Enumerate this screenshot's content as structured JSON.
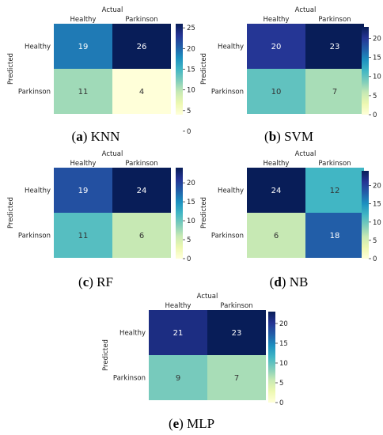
{
  "chart_data": [
    {
      "type": "heatmap",
      "caption_letter": "a",
      "caption_name": "KNN",
      "xlabel": "Actual",
      "ylabel": "Predicted",
      "columns": [
        "Healthy",
        "Parkinson"
      ],
      "rows": [
        "Healthy",
        "Parkinson"
      ],
      "values": [
        [
          19,
          26
        ],
        [
          11,
          4
        ]
      ],
      "colorbar_ticks": [
        0,
        5,
        10,
        15,
        20,
        25
      ],
      "vmin": 4,
      "vmax": 26
    },
    {
      "type": "heatmap",
      "caption_letter": "b",
      "caption_name": "SVM",
      "xlabel": "Actual",
      "ylabel": "Predicted",
      "columns": [
        "Healthy",
        "Parkinson"
      ],
      "rows": [
        "Healthy",
        "Parkinson"
      ],
      "values": [
        [
          20,
          23
        ],
        [
          10,
          7
        ]
      ],
      "colorbar_ticks": [
        0,
        5,
        10,
        15,
        20
      ],
      "vmin": 0,
      "vmax": 23
    },
    {
      "type": "heatmap",
      "caption_letter": "c",
      "caption_name": "RF",
      "xlabel": "Actual",
      "ylabel": "Predicted",
      "columns": [
        "Healthy",
        "Parkinson"
      ],
      "rows": [
        "Healthy",
        "Parkinson"
      ],
      "values": [
        [
          19,
          24
        ],
        [
          11,
          6
        ]
      ],
      "colorbar_ticks": [
        0,
        5,
        10,
        15,
        20
      ],
      "vmin": 0,
      "vmax": 24
    },
    {
      "type": "heatmap",
      "caption_letter": "d",
      "caption_name": "NB",
      "xlabel": "Actual",
      "ylabel": "Predicted",
      "columns": [
        "Healthy",
        "Parkinson"
      ],
      "rows": [
        "Healthy",
        "Parkinson"
      ],
      "values": [
        [
          24,
          12
        ],
        [
          6,
          18
        ]
      ],
      "colorbar_ticks": [
        0,
        5,
        10,
        15,
        20
      ],
      "vmin": 0,
      "vmax": 24
    },
    {
      "type": "heatmap",
      "caption_letter": "e",
      "caption_name": "MLP",
      "xlabel": "Actual",
      "ylabel": "Predicted",
      "columns": [
        "Healthy",
        "Parkinson"
      ],
      "rows": [
        "Healthy",
        "Parkinson"
      ],
      "values": [
        [
          21,
          23
        ],
        [
          9,
          7
        ]
      ],
      "colorbar_ticks": [
        0,
        5,
        10,
        15,
        20
      ],
      "vmin": 0,
      "vmax": 23
    }
  ],
  "colormap": "YlGnBu",
  "colormap_stops": [
    "#ffffd9",
    "#edf8b1",
    "#c7e9b4",
    "#7fcdbb",
    "#41b6c4",
    "#1d91c0",
    "#225ea8",
    "#253494",
    "#081d58"
  ]
}
